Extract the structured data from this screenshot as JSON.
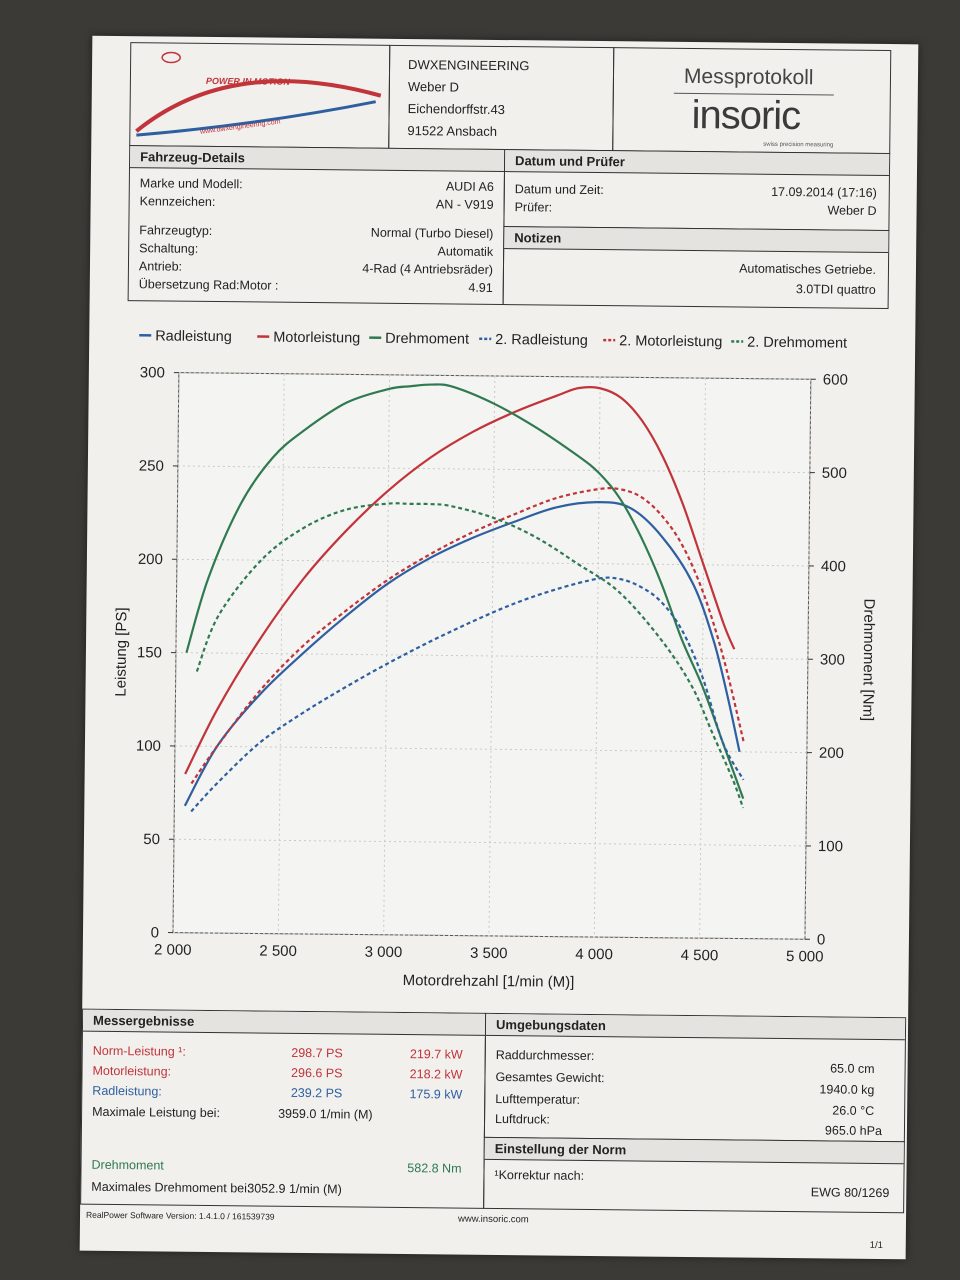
{
  "header": {
    "company": "DWXENGINEERING",
    "contact": "Weber D",
    "street": "Eichendorffstr.43",
    "city": "91522 Ansbach",
    "logo_text": "POWER IN MOTION",
    "logo_url": "www.dwxengineering.com",
    "protocol_title": "Messprotokoll",
    "brand": "insoric",
    "brand_tagline": "swiss precision measuring"
  },
  "vehicle": {
    "title": "Fahrzeug-Details",
    "fields": [
      {
        "label": "Marke und Modell:",
        "value": "AUDI A6"
      },
      {
        "label": "Kennzeichen:",
        "value": "AN - V919"
      },
      {
        "label": "Fahrzeugtyp:",
        "value": "Normal (Turbo Diesel)"
      },
      {
        "label": "Schaltung:",
        "value": "Automatik"
      },
      {
        "label": "Antrieb:",
        "value": "4-Rad (4 Antriebsräder)"
      },
      {
        "label": "Übersetzung Rad:Motor :",
        "value": "4.91"
      }
    ]
  },
  "date": {
    "title": "Datum und Prüfer",
    "datetime_label": "Datum und Zeit:",
    "datetime_value": "17.09.2014 (17:16)",
    "examiner_label": "Prüfer:",
    "examiner_value": "Weber D"
  },
  "notes": {
    "title": "Notizen",
    "line1": "Automatisches Getriebe.",
    "line2": "3.0TDI quattro"
  },
  "chart_data": {
    "type": "line",
    "legend": [
      "Radleistung",
      "Motorleistung",
      "Drehmoment",
      "2. Radleistung",
      "2. Motorleistung",
      "2. Drehmoment"
    ],
    "colors": {
      "rad": "#2e5fa0",
      "motor": "#c0343a",
      "dreh": "#2f7a50"
    },
    "xlabel": "Motordrehzahl [1/min (M)]",
    "ylabel_left": "Leistung [PS]",
    "ylabel_right": "Drehmoment [Nm]",
    "xlim": [
      2000,
      5000
    ],
    "ylim_left": [
      0,
      300
    ],
    "ylim_right": [
      0,
      600
    ],
    "xticks": [
      "2 000",
      "2 500",
      "3 000",
      "3 500",
      "4 000",
      "4 500",
      "5 000"
    ],
    "yticks_left": [
      "0",
      "50",
      "100",
      "150",
      "200",
      "250",
      "300"
    ],
    "yticks_right": [
      "0",
      "100",
      "200",
      "300",
      "400",
      "500",
      "600"
    ],
    "grid": true,
    "series": [
      {
        "name": "Radleistung",
        "axis": "left",
        "style": "solid",
        "color": "#2e5fa0",
        "x": [
          2050,
          2200,
          2400,
          2600,
          2800,
          3000,
          3200,
          3400,
          3600,
          3800,
          4000,
          4150,
          4300,
          4450,
          4550,
          4620,
          4680
        ],
        "y": [
          68,
          100,
          128,
          150,
          170,
          188,
          202,
          213,
          222,
          230,
          233,
          230,
          215,
          190,
          160,
          130,
          100
        ]
      },
      {
        "name": "Motorleistung",
        "axis": "left",
        "style": "solid",
        "color": "#c0343a",
        "x": [
          2050,
          2200,
          2400,
          2600,
          2800,
          3000,
          3200,
          3400,
          3600,
          3800,
          3900,
          4000,
          4100,
          4200,
          4300,
          4400,
          4500,
          4600,
          4650
        ],
        "y": [
          85,
          120,
          158,
          190,
          216,
          238,
          256,
          270,
          281,
          290,
          294,
          294,
          289,
          277,
          258,
          232,
          200,
          168,
          155
        ]
      },
      {
        "name": "Drehmoment",
        "axis": "right",
        "style": "solid",
        "color": "#2f7a50",
        "x": [
          2050,
          2150,
          2300,
          2450,
          2600,
          2800,
          3000,
          3100,
          3200,
          3300,
          3500,
          3700,
          3900,
          4000,
          4100,
          4200,
          4300,
          4400,
          4500,
          4600,
          4700
        ],
        "y": [
          300,
          380,
          460,
          510,
          540,
          570,
          585,
          588,
          590,
          588,
          570,
          545,
          515,
          497,
          470,
          430,
          380,
          320,
          270,
          210,
          150
        ]
      },
      {
        "name": "2. Radleistung",
        "axis": "left",
        "style": "dashed",
        "color": "#2e5fa0",
        "x": [
          2080,
          2200,
          2400,
          2600,
          2800,
          3000,
          3200,
          3400,
          3600,
          3800,
          4000,
          4100,
          4200,
          4300,
          4400,
          4500,
          4600,
          4700
        ],
        "y": [
          65,
          80,
          102,
          118,
          132,
          145,
          157,
          168,
          178,
          186,
          192,
          192,
          188,
          180,
          165,
          140,
          105,
          85
        ]
      },
      {
        "name": "2. Motorleistung",
        "axis": "left",
        "style": "dashed",
        "color": "#c0343a",
        "x": [
          2080,
          2200,
          2400,
          2600,
          2800,
          3000,
          3200,
          3400,
          3600,
          3800,
          4000,
          4100,
          4200,
          4300,
          4400,
          4500,
          4600,
          4700
        ],
        "y": [
          80,
          100,
          130,
          154,
          173,
          190,
          204,
          216,
          226,
          235,
          240,
          240,
          236,
          226,
          210,
          185,
          150,
          105
        ]
      },
      {
        "name": "2. Drehmoment",
        "axis": "right",
        "style": "dashed",
        "color": "#2f7a50",
        "x": [
          2100,
          2200,
          2400,
          2600,
          2800,
          3000,
          3100,
          3200,
          3300,
          3500,
          3700,
          3900,
          4100,
          4300,
          4450,
          4550,
          4650,
          4700
        ],
        "y": [
          280,
          340,
          400,
          435,
          455,
          462,
          462,
          462,
          460,
          448,
          428,
          400,
          370,
          320,
          270,
          220,
          170,
          140
        ]
      }
    ]
  },
  "results": {
    "title": "Messergebnisse",
    "norm_label": "Norm-Leistung ¹:",
    "norm_ps": "298.7 PS",
    "norm_kw": "219.7 kW",
    "motor_label": "Motorleistung:",
    "motor_ps": "296.6 PS",
    "motor_kw": "218.2 kW",
    "rad_label": "Radleistung:",
    "rad_ps": "239.2 PS",
    "rad_kw": "175.9 kW",
    "maxpower_label": "Maximale Leistung bei:",
    "maxpower_value": "3959.0 1/min (M)",
    "torque_label": "Drehmoment",
    "torque_value": "582.8 Nm",
    "maxtorque_label": "Maximales Drehmoment bei:",
    "maxtorque_value": "3052.9 1/min (M)"
  },
  "environment": {
    "title": "Umgebungsdaten",
    "fields": [
      {
        "label": "Raddurchmesser:",
        "value": "65.0 cm"
      },
      {
        "label": "Gesamtes Gewicht:",
        "value": "1940.0 kg"
      },
      {
        "label": "Lufttemperatur:",
        "value": "26.0 °C"
      },
      {
        "label": "Luftdruck:",
        "value": "965.0 hPa"
      }
    ]
  },
  "norm": {
    "title": "Einstellung der Norm",
    "label": "¹Korrektur nach:",
    "value": "EWG 80/1269"
  },
  "footer": {
    "software": "RealPower Software Version: 1.4.1.0 / 161539739",
    "url": "www.insoric.com",
    "page": "1/1"
  }
}
